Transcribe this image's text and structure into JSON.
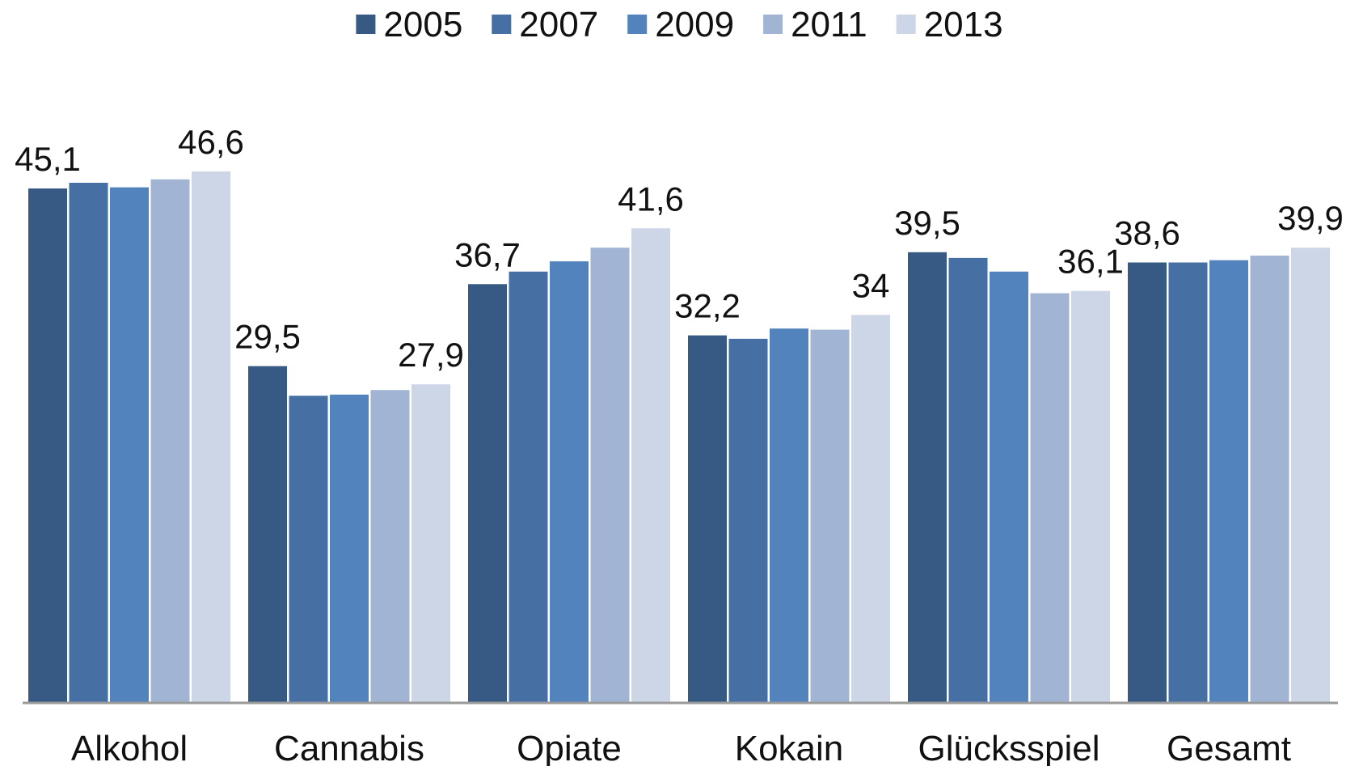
{
  "chart_data": {
    "type": "bar",
    "title": "",
    "xlabel": "",
    "ylabel": "",
    "ylim": [
      0,
      50
    ],
    "grid": false,
    "legend_position": "top-center",
    "categories": [
      "Alkohol",
      "Cannabis",
      "Opiate",
      "Kokain",
      "Glücksspiel",
      "Gesamt"
    ],
    "series": [
      {
        "name": "2005",
        "color": "#375a84",
        "values": [
          45.1,
          29.5,
          36.7,
          32.2,
          39.5,
          38.6
        ]
      },
      {
        "name": "2007",
        "color": "#4670a4",
        "values": [
          45.6,
          26.9,
          37.8,
          31.9,
          39.0,
          38.6
        ]
      },
      {
        "name": "2009",
        "color": "#5283bd",
        "values": [
          45.2,
          27.0,
          38.7,
          32.8,
          37.8,
          38.8
        ]
      },
      {
        "name": "2011",
        "color": "#a1b4d4",
        "values": [
          45.9,
          27.4,
          39.9,
          32.7,
          35.9,
          39.2
        ]
      },
      {
        "name": "2013",
        "color": "#cdd6e6",
        "values": [
          46.6,
          27.9,
          41.6,
          34.0,
          36.1,
          39.9
        ]
      }
    ],
    "data_labels": [
      {
        "category": 0,
        "series": 0,
        "text": "45,1"
      },
      {
        "category": 0,
        "series": 4,
        "text": "46,6"
      },
      {
        "category": 1,
        "series": 0,
        "text": "29,5"
      },
      {
        "category": 1,
        "series": 4,
        "text": "27,9"
      },
      {
        "category": 2,
        "series": 0,
        "text": "36,7"
      },
      {
        "category": 2,
        "series": 4,
        "text": "41,6"
      },
      {
        "category": 3,
        "series": 0,
        "text": "32,2"
      },
      {
        "category": 3,
        "series": 4,
        "text": "34"
      },
      {
        "category": 4,
        "series": 0,
        "text": "39,5"
      },
      {
        "category": 4,
        "series": 4,
        "text": "36,1"
      },
      {
        "category": 5,
        "series": 0,
        "text": "38,6"
      },
      {
        "category": 5,
        "series": 4,
        "text": "39,9"
      }
    ]
  }
}
